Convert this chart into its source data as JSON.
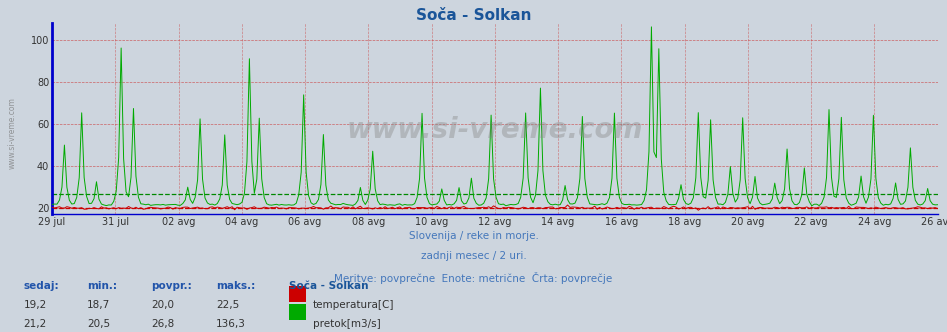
{
  "title": "Soča - Solkan",
  "title_color": "#1a5599",
  "background_color": "#cdd5de",
  "plot_bg_color": "#cdd5de",
  "x_label_dates": [
    "29 jul",
    "31 jul",
    "02 avg",
    "04 avg",
    "06 avg",
    "08 avg",
    "10 avg",
    "12 avg",
    "14 avg",
    "16 avg",
    "18 avg",
    "20 avg",
    "22 avg",
    "24 avg",
    "26 avg"
  ],
  "y_ticks": [
    20,
    40,
    60,
    80,
    100
  ],
  "y_min": 17,
  "y_max": 108,
  "grid_color_h": "#cc4444",
  "grid_color_v": "#cc4444",
  "avg_color_temp": "#cc0000",
  "avg_color_flow": "#008800",
  "temp_color": "#cc0000",
  "flow_color": "#00aa00",
  "border_color": "#0000cc",
  "subtitle1": "Slovenija / reke in morje.",
  "subtitle2": "zadnji mesec / 2 uri.",
  "subtitle3": "Meritve: povprečne  Enote: metrične  Črta: povprečje",
  "subtitle_color": "#4477bb",
  "legend_title": "Soča - Solkan",
  "legend_title_color": "#1a5599",
  "legend_temp_label": "temperatura[C]",
  "legend_flow_label": "pretok[m3/s]",
  "legend_temp_color": "#cc0000",
  "legend_flow_color": "#00aa00",
  "stats_headers": [
    "sedaj:",
    "min.:",
    "povpr.:",
    "maks.:"
  ],
  "stats_temp": [
    "19,2",
    "18,7",
    "20,0",
    "22,5"
  ],
  "stats_flow": [
    "21,2",
    "20,5",
    "26,8",
    "136,3"
  ],
  "n_points": 360,
  "temp_avg": 20.0,
  "flow_avg": 26.8
}
